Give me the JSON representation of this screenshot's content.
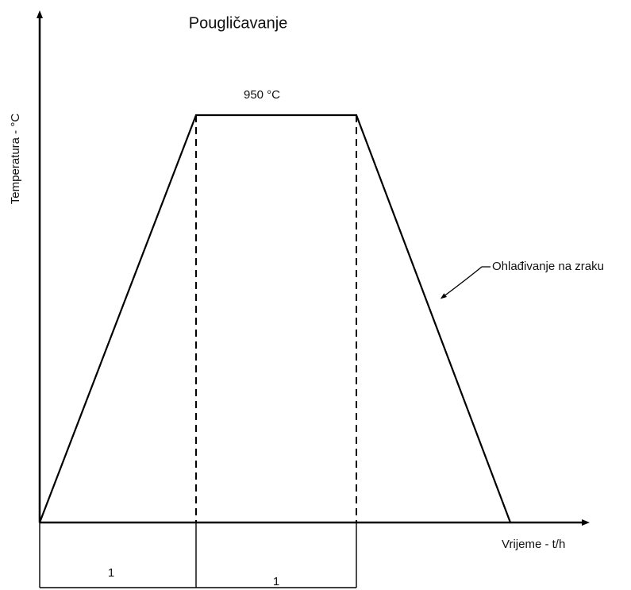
{
  "title": "Pougličavanje",
  "temperature_label": "950 °C",
  "y_axis_label": "Temperatura - °C",
  "x_axis_label": "Vrijeme - t/h",
  "annotation": "Ohlađivanje na zraku",
  "segments": [
    "1",
    "1"
  ]
}
